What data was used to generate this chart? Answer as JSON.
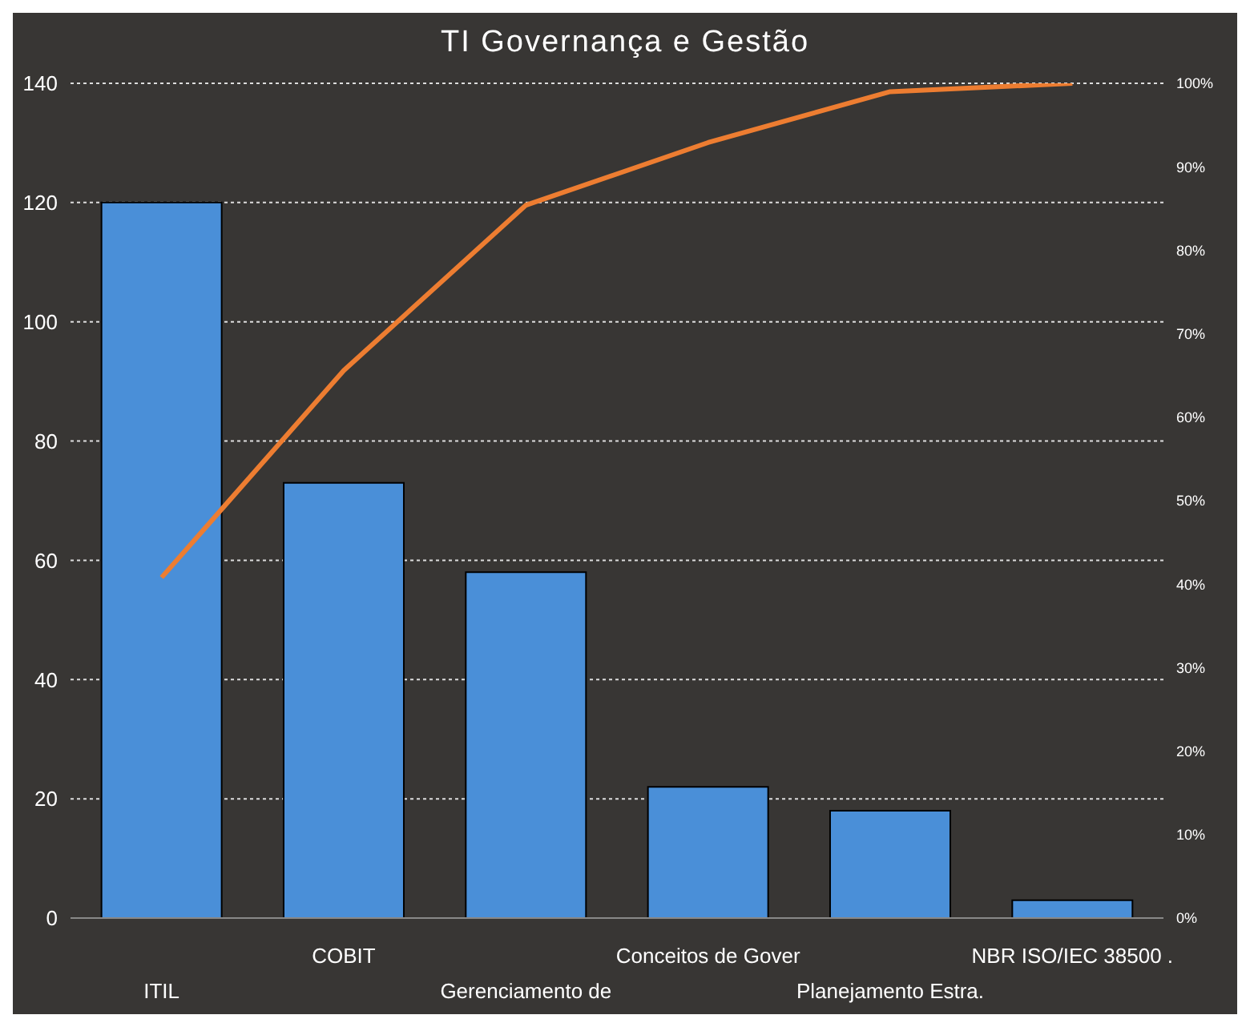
{
  "chart_data": {
    "type": "bar",
    "title": "TI Governança e Gestão",
    "categories": [
      "ITIL",
      "COBIT",
      "Gerenciamento de",
      "Conceitos de Gover",
      "Planejamento Estra.",
      "NBR ISO/IEC 38500 ."
    ],
    "series": [
      {
        "color": "#4a8fd8",
        "values": [
          120,
          73,
          58,
          22,
          18,
          3
        ]
      },
      {
        "type": "line",
        "axis": "y2",
        "color": "#ed7d31",
        "values": [
          40.8,
          65.6,
          85.4,
          92.9,
          99.0,
          100
        ]
      }
    ],
    "ylim": [
      0,
      140
    ],
    "yticks": [
      0,
      20,
      40,
      60,
      80,
      100,
      120,
      140
    ],
    "y2lim": [
      0,
      100
    ],
    "y2ticks": [
      {
        "value": 0,
        "label": "0%"
      },
      {
        "value": 10,
        "label": "10%"
      },
      {
        "value": 20,
        "label": "20%"
      },
      {
        "value": 30,
        "label": "30%"
      },
      {
        "value": 40,
        "label": "40%"
      },
      {
        "value": 50,
        "label": "50%"
      },
      {
        "value": 60,
        "label": "60%"
      },
      {
        "value": 70,
        "label": "70%"
      },
      {
        "value": 80,
        "label": "80%"
      },
      {
        "value": 90,
        "label": "90%"
      },
      {
        "value": 100,
        "label": "100%"
      }
    ],
    "grid": "y",
    "legend": false,
    "marker": "none",
    "line_style": "solid"
  }
}
